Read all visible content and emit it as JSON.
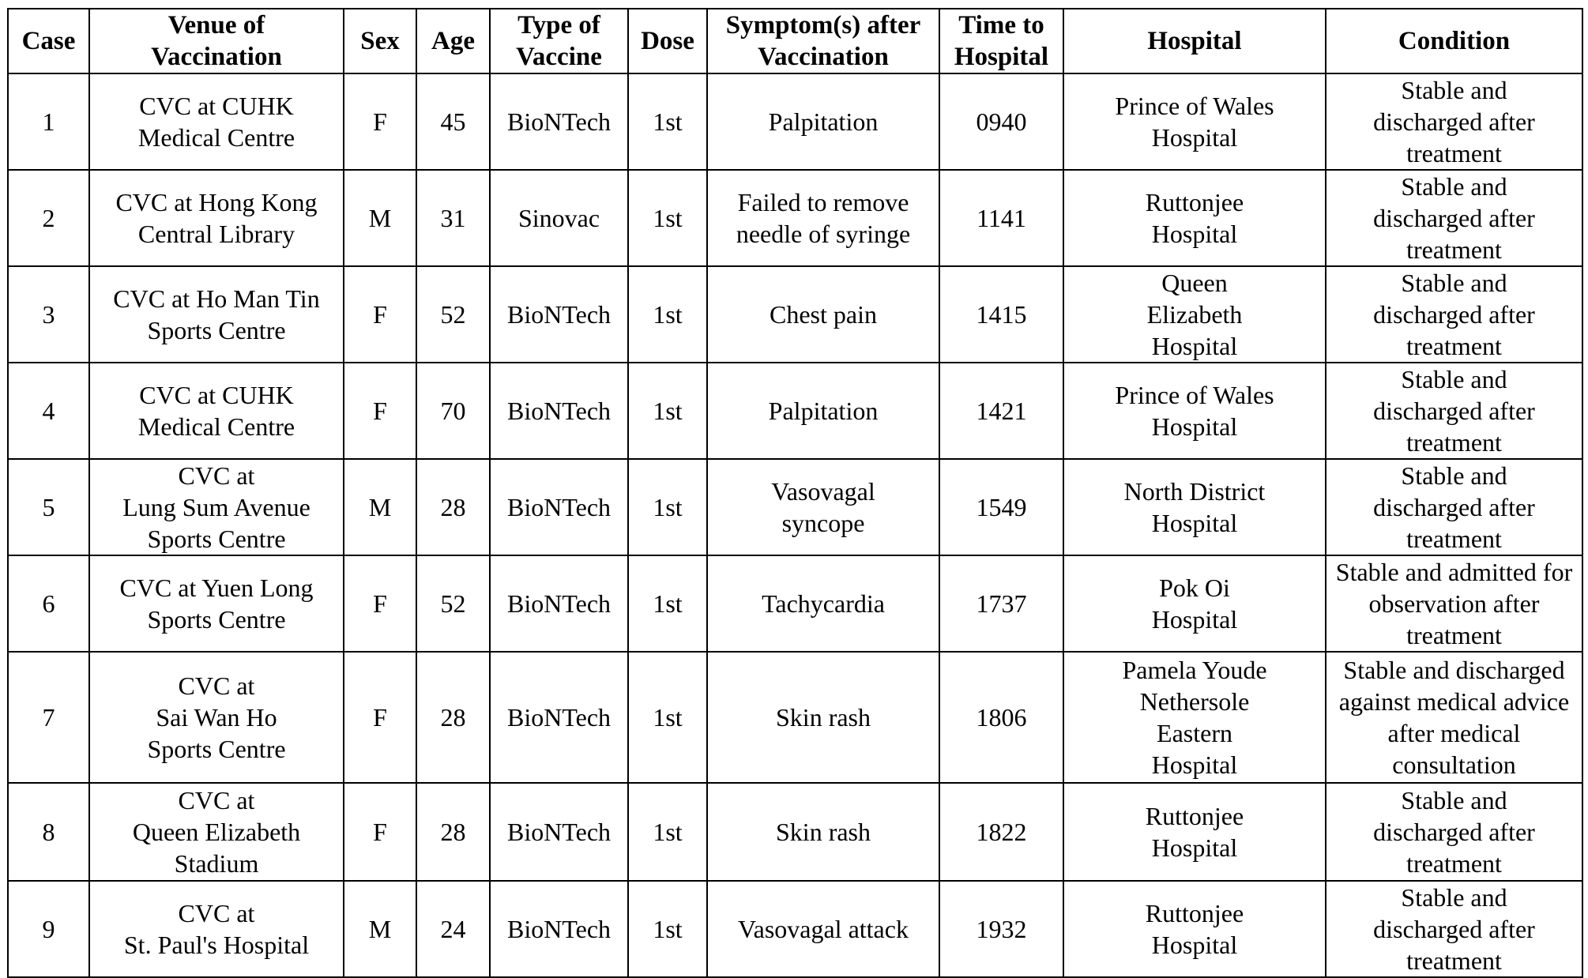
{
  "headers": {
    "case": "Case",
    "venue": "Venue of\nVaccination",
    "sex": "Sex",
    "age": "Age",
    "vaccine": "Type of\nVaccine",
    "dose": "Dose",
    "symptom": "Symptom(s) after\nVaccination",
    "time": "Time to\nHospital",
    "hospital": "Hospital",
    "condition": "Condition"
  },
  "rows": [
    {
      "case": "1",
      "venue": "CVC at CUHK\nMedical Centre",
      "sex": "F",
      "age": "45",
      "vaccine": "BioNTech",
      "dose": "1st",
      "symptom": "Palpitation",
      "time": "0940",
      "hospital": "Prince of Wales\nHospital",
      "condition": "Stable and\ndischarged after treatment"
    },
    {
      "case": "2",
      "venue": "CVC at Hong Kong\nCentral Library",
      "sex": "M",
      "age": "31",
      "vaccine": "Sinovac",
      "dose": "1st",
      "symptom": "Failed to remove\nneedle of syringe",
      "time": "1141",
      "hospital": "Ruttonjee\nHospital",
      "condition": "Stable and\ndischarged after treatment"
    },
    {
      "case": "3",
      "venue": "CVC at Ho Man Tin\nSports Centre",
      "sex": "F",
      "age": "52",
      "vaccine": "BioNTech",
      "dose": "1st",
      "symptom": "Chest pain",
      "time": "1415",
      "hospital": "Queen\nElizabeth\nHospital",
      "condition": "Stable and\ndischarged after treatment"
    },
    {
      "case": "4",
      "venue": "CVC at CUHK\nMedical Centre",
      "sex": "F",
      "age": "70",
      "vaccine": "BioNTech",
      "dose": "1st",
      "symptom": "Palpitation",
      "time": "1421",
      "hospital": "Prince of Wales\nHospital",
      "condition": "Stable and\ndischarged after treatment"
    },
    {
      "case": "5",
      "venue": "CVC at\nLung Sum Avenue\nSports Centre",
      "sex": "M",
      "age": "28",
      "vaccine": "BioNTech",
      "dose": "1st",
      "symptom": "Vasovagal\nsyncope",
      "time": "1549",
      "hospital": "North District\nHospital",
      "condition": "Stable and\ndischarged after treatment"
    },
    {
      "case": "6",
      "venue": "CVC at Yuen Long\nSports Centre",
      "sex": "F",
      "age": "52",
      "vaccine": "BioNTech",
      "dose": "1st",
      "symptom": "Tachycardia",
      "time": "1737",
      "hospital": "Pok Oi\nHospital",
      "condition": "Stable and admitted for\nobservation after treatment"
    },
    {
      "case": "7",
      "venue": "CVC at\nSai Wan Ho\nSports Centre",
      "sex": "F",
      "age": "28",
      "vaccine": "BioNTech",
      "dose": "1st",
      "symptom": "Skin rash",
      "time": "1806",
      "hospital": "Pamela Youde\nNethersole\nEastern\nHospital",
      "condition": "Stable and discharged\nagainst medical advice\nafter medical consultation"
    },
    {
      "case": "8",
      "venue": "CVC at\nQueen Elizabeth\nStadium",
      "sex": "F",
      "age": "28",
      "vaccine": "BioNTech",
      "dose": "1st",
      "symptom": "Skin rash",
      "time": "1822",
      "hospital": "Ruttonjee\nHospital",
      "condition": "Stable and\ndischarged after treatment"
    },
    {
      "case": "9",
      "venue": "CVC at\nSt. Paul's Hospital",
      "sex": "M",
      "age": "24",
      "vaccine": "BioNTech",
      "dose": "1st",
      "symptom": "Vasovagal attack",
      "time": "1932",
      "hospital": "Ruttonjee\nHospital",
      "condition": "Stable and\ndischarged after treatment"
    }
  ]
}
